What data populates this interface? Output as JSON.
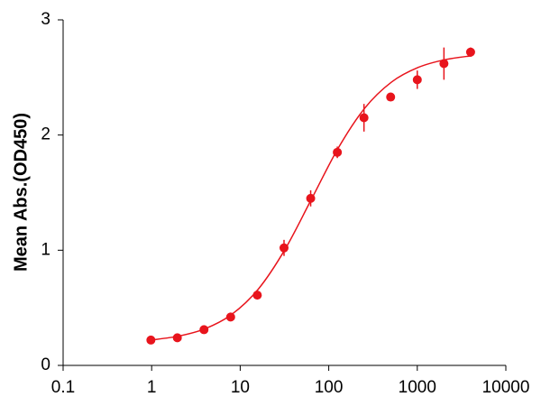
{
  "chart_data": {
    "type": "scatter",
    "ylabel": "Mean Abs.(OD450)",
    "xscale": "log",
    "xlim": [
      0.1,
      10000
    ],
    "xticks": [
      0.1,
      1,
      10,
      100,
      1000,
      10000
    ],
    "ylim": [
      0,
      3
    ],
    "yticks": [
      0,
      1,
      2,
      3
    ],
    "series": [
      {
        "color": "#e8141c",
        "x": [
          0.98,
          1.95,
          3.9,
          7.8,
          15.6,
          31.25,
          62.5,
          125,
          250,
          500,
          1000,
          2000,
          4000
        ],
        "values": [
          0.22,
          0.24,
          0.31,
          0.42,
          0.61,
          1.02,
          1.45,
          1.85,
          2.15,
          2.33,
          2.48,
          2.62,
          2.72
        ],
        "errors": [
          0.02,
          0.02,
          0.03,
          0.03,
          0.02,
          0.07,
          0.07,
          0.05,
          0.12,
          0.03,
          0.08,
          0.14,
          0.04
        ]
      }
    ],
    "curve": {
      "color": "#e8141c",
      "x": [
        1,
        2,
        4,
        8,
        16,
        32,
        64,
        128,
        256,
        512,
        1024,
        2048,
        4096
      ],
      "values": [
        0.221,
        0.254,
        0.318,
        0.442,
        0.662,
        1.006,
        1.445,
        1.887,
        2.235,
        2.46,
        2.587,
        2.654,
        2.688
      ]
    }
  }
}
